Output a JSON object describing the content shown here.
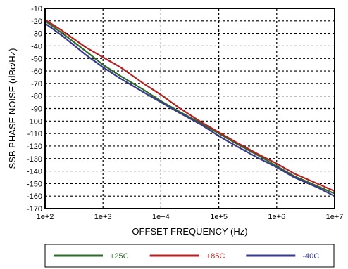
{
  "chart_data": {
    "type": "line",
    "title": "",
    "xlabel": "OFFSET FREQUENCY  (Hz)",
    "ylabel": "SSB PHASE NOISE (dBc/Hz)",
    "xscale": "log",
    "xlim": [
      100,
      10000000
    ],
    "ylim": [
      -170,
      -10
    ],
    "x_ticks": [
      100,
      1000,
      10000,
      100000,
      1000000,
      10000000
    ],
    "x_tick_labels": [
      "1e+2",
      "1e+3",
      "1e+4",
      "1e+5",
      "1e+6",
      "1e+7"
    ],
    "y_ticks": [
      -10,
      -20,
      -30,
      -40,
      -50,
      -60,
      -70,
      -80,
      -90,
      -100,
      -110,
      -120,
      -130,
      -140,
      -150,
      -160,
      -170
    ],
    "y_tick_labels": [
      "-10",
      "-20",
      "-30",
      "-40",
      "-50",
      "-60",
      "-70",
      "-80",
      "-90",
      "-100",
      "-110",
      "-120",
      "-130",
      "-140",
      "-150",
      "-160",
      "-170"
    ],
    "grid": true,
    "legend_position": "bottom",
    "series": [
      {
        "name": "+25C",
        "color": "#2d6a2d",
        "x": [
          100,
          200,
          500,
          1000,
          2000,
          5000,
          10000,
          20000,
          50000,
          100000,
          200000,
          500000,
          1000000,
          2000000,
          5000000,
          10000000
        ],
        "y": [
          -20,
          -30,
          -44,
          -55,
          -64,
          -75,
          -84,
          -92,
          -102,
          -110,
          -118,
          -128,
          -136,
          -144,
          -152,
          -158
        ]
      },
      {
        "name": "+85C",
        "color": "#b22222",
        "x": [
          100,
          200,
          500,
          1000,
          2000,
          5000,
          10000,
          20000,
          50000,
          100000,
          200000,
          500000,
          1000000,
          2000000,
          5000000,
          10000000
        ],
        "y": [
          -19,
          -28,
          -41,
          -49,
          -57,
          -70,
          -79,
          -89,
          -101,
          -109,
          -117,
          -127,
          -134,
          -142,
          -150,
          -156
        ]
      },
      {
        "name": "-40C",
        "color": "#3a3a8c",
        "x": [
          100,
          200,
          500,
          1000,
          2000,
          5000,
          10000,
          20000,
          50000,
          100000,
          200000,
          500000,
          1000000,
          2000000,
          5000000,
          10000000
        ],
        "y": [
          -22,
          -32,
          -47,
          -57,
          -66,
          -77,
          -85,
          -93,
          -103,
          -112,
          -120,
          -130,
          -137,
          -145,
          -153,
          -160
        ]
      }
    ]
  }
}
